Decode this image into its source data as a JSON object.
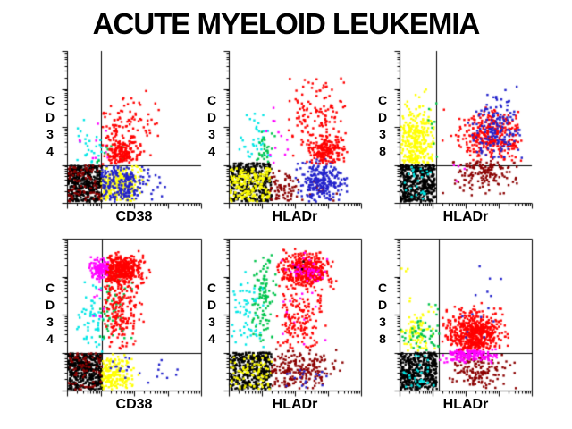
{
  "title": "ACUTE MYELOID LEUKEMIA",
  "colors": {
    "black": "#000000",
    "red": "#FF0000",
    "maroon": "#8B0000",
    "blue": "#2222CC",
    "yellow": "#FFFF00",
    "cyan": "#00E6E6",
    "green": "#00C44C",
    "magenta": "#FF00FF"
  },
  "chart_data": {
    "type": "scatter",
    "subtype": "flow-cytometry-dot-plots",
    "grid": "2 rows x 3 columns",
    "axis_scale": "log, 4 decades per axis, unlabeled tick marks",
    "panels": [
      {
        "id": "top-left",
        "xlabel": "CD38",
        "ylabel": "CD34",
        "boxed": false,
        "quadrant": {
          "x": 1.0,
          "y": 1.0
        },
        "clusters": [
          {
            "color": "black",
            "dist": "uniform",
            "n": 420,
            "box": [
              0.03,
              1.04,
              0.03,
              0.98
            ]
          },
          {
            "color": "maroon",
            "dist": "uniform",
            "n": 90,
            "box": [
              0.03,
              1.04,
              0.03,
              0.98
            ]
          },
          {
            "color": "yellow",
            "dist": "gauss",
            "n": 260,
            "cx": 1.45,
            "cy": 0.45,
            "sx": 0.42,
            "sy": 0.3,
            "box": [
              1.02,
              2.6,
              0.03,
              0.98
            ]
          },
          {
            "color": "blue",
            "dist": "gauss",
            "n": 220,
            "cx": 1.55,
            "cy": 0.5,
            "sx": 0.5,
            "sy": 0.32,
            "box": [
              1.02,
              3.1,
              0.03,
              0.98
            ]
          },
          {
            "color": "cyan",
            "dist": "gauss",
            "n": 28,
            "cx": 0.65,
            "cy": 1.45,
            "sx": 0.3,
            "sy": 0.4,
            "box": [
              0.1,
              1.15,
              1.0,
              2.9
            ]
          },
          {
            "color": "magenta",
            "dist": "gauss",
            "n": 10,
            "cx": 0.75,
            "cy": 1.5,
            "sx": 0.35,
            "sy": 0.45,
            "box": [
              0.1,
              1.3,
              1.0,
              2.6
            ]
          },
          {
            "color": "green",
            "dist": "gauss",
            "n": 10,
            "cx": 1.2,
            "cy": 1.25,
            "sx": 0.25,
            "sy": 0.3,
            "box": [
              0.9,
              1.7,
              1.0,
              2.2
            ]
          },
          {
            "color": "red",
            "dist": "gauss",
            "n": 110,
            "cx": 1.75,
            "cy": 2.0,
            "sx": 0.45,
            "sy": 0.55,
            "box": [
              1.05,
              2.8,
              1.0,
              3.2
            ]
          },
          {
            "color": "red",
            "dist": "gauss",
            "n": 170,
            "cx": 1.62,
            "cy": 1.32,
            "sx": 0.22,
            "sy": 0.18,
            "box": [
              1.05,
              2.6,
              1.02,
              2.0
            ]
          }
        ]
      },
      {
        "id": "top-middle",
        "xlabel": "HLADr",
        "ylabel": "CD34",
        "boxed": false,
        "quadrant": null,
        "clusters": [
          {
            "color": "black",
            "dist": "uniform",
            "n": 400,
            "box": [
              0.03,
              1.3,
              0.03,
              1.05
            ]
          },
          {
            "color": "yellow",
            "dist": "uniform",
            "n": 190,
            "box": [
              0.03,
              1.25,
              0.03,
              0.92
            ]
          },
          {
            "color": "maroon",
            "dist": "gauss",
            "n": 70,
            "cx": 1.6,
            "cy": 0.35,
            "sx": 0.25,
            "sy": 0.25,
            "box": [
              1.25,
              2.2,
              0.03,
              0.9
            ]
          },
          {
            "color": "maroon",
            "dist": "uniform",
            "n": 15,
            "box": [
              2.2,
              3.3,
              0.05,
              0.7
            ]
          },
          {
            "color": "blue",
            "dist": "gauss",
            "n": 240,
            "cx": 2.85,
            "cy": 0.55,
            "sx": 0.35,
            "sy": 0.3,
            "box": [
              2.0,
              3.6,
              0.03,
              1.15
            ]
          },
          {
            "color": "cyan",
            "dist": "gauss",
            "n": 35,
            "cx": 0.8,
            "cy": 1.6,
            "sx": 0.3,
            "sy": 0.4,
            "box": [
              0.3,
              1.3,
              1.05,
              2.5
            ]
          },
          {
            "color": "green",
            "dist": "gauss",
            "n": 30,
            "cx": 1.1,
            "cy": 1.35,
            "sx": 0.15,
            "sy": 0.25,
            "box": [
              0.8,
              1.4,
              1.0,
              2.0
            ]
          },
          {
            "color": "magenta",
            "dist": "gauss",
            "n": 12,
            "cx": 1.4,
            "cy": 1.7,
            "sx": 0.2,
            "sy": 0.45,
            "box": [
              1.1,
              1.8,
              1.05,
              2.7
            ]
          },
          {
            "color": "red",
            "dist": "gauss",
            "n": 130,
            "cx": 2.7,
            "cy": 2.3,
            "sx": 0.5,
            "sy": 0.6,
            "box": [
              1.6,
              3.6,
              1.2,
              3.3
            ]
          },
          {
            "color": "red",
            "dist": "gauss",
            "n": 190,
            "cx": 2.95,
            "cy": 1.35,
            "sx": 0.3,
            "sy": 0.22,
            "box": [
              2.2,
              3.6,
              1.0,
              1.9
            ]
          }
        ]
      },
      {
        "id": "top-right",
        "xlabel": "HLADr",
        "ylabel": "CD38",
        "boxed": false,
        "quadrant": {
          "x": 1.1,
          "y": 1.0
        },
        "clusters": [
          {
            "color": "black",
            "dist": "uniform",
            "n": 440,
            "box": [
              0.03,
              1.08,
              0.03,
              1.0
            ]
          },
          {
            "color": "cyan",
            "dist": "uniform",
            "n": 25,
            "box": [
              0.1,
              1.0,
              0.1,
              0.95
            ]
          },
          {
            "color": "yellow",
            "dist": "gauss",
            "n": 300,
            "cx": 0.5,
            "cy": 1.6,
            "sx": 0.3,
            "sy": 0.45,
            "box": [
              0.03,
              1.06,
              1.05,
              3.3
            ]
          },
          {
            "color": "green",
            "dist": "gauss",
            "n": 8,
            "cx": 1.0,
            "cy": 2.0,
            "sx": 0.1,
            "sy": 0.5,
            "box": [
              0.85,
              1.15,
              1.1,
              2.7
            ]
          },
          {
            "color": "maroon",
            "dist": "gauss",
            "n": 150,
            "cx": 2.6,
            "cy": 0.8,
            "sx": 0.5,
            "sy": 0.28,
            "box": [
              1.15,
              3.6,
              0.15,
              1.1
            ]
          },
          {
            "color": "magenta",
            "dist": "uniform",
            "n": 4,
            "box": [
              1.4,
              2.4,
              0.4,
              1.1
            ]
          },
          {
            "color": "red",
            "dist": "gauss",
            "n": 330,
            "cx": 2.75,
            "cy": 1.75,
            "sx": 0.5,
            "sy": 0.32,
            "box": [
              1.3,
              3.7,
              1.1,
              2.7
            ]
          },
          {
            "color": "blue",
            "dist": "gauss",
            "n": 160,
            "cx": 3.0,
            "cy": 1.9,
            "sx": 0.4,
            "sy": 0.45,
            "box": [
              1.5,
              3.7,
              1.1,
              3.4
            ]
          }
        ]
      },
      {
        "id": "bottom-left",
        "xlabel": "CD38",
        "ylabel": "CD34",
        "boxed": true,
        "quadrant": {
          "x": 1.05,
          "y": 1.0
        },
        "clusters": [
          {
            "color": "black",
            "dist": "uniform",
            "n": 430,
            "box": [
              0.03,
              1.03,
              0.03,
              0.98
            ]
          },
          {
            "color": "maroon",
            "dist": "uniform",
            "n": 70,
            "box": [
              0.03,
              1.03,
              0.03,
              0.98
            ]
          },
          {
            "color": "yellow",
            "dist": "gauss",
            "n": 170,
            "cx": 1.35,
            "cy": 0.4,
            "sx": 0.3,
            "sy": 0.28,
            "box": [
              1.05,
              2.3,
              0.03,
              0.98
            ]
          },
          {
            "color": "blue",
            "dist": "uniform",
            "n": 22,
            "box": [
              1.2,
              3.6,
              0.15,
              0.95
            ]
          },
          {
            "color": "cyan",
            "dist": "gauss",
            "n": 55,
            "cx": 0.75,
            "cy": 1.8,
            "sx": 0.22,
            "sy": 0.45,
            "box": [
              0.2,
              1.1,
              1.0,
              2.9
            ]
          },
          {
            "color": "green",
            "dist": "gauss",
            "n": 60,
            "cx": 1.3,
            "cy": 2.4,
            "sx": 0.3,
            "sy": 0.7,
            "box": [
              0.95,
              2.0,
              1.2,
              3.7
            ]
          },
          {
            "color": "magenta",
            "dist": "uniform",
            "n": 8,
            "box": [
              0.75,
              1.15,
              1.9,
              2.8
            ]
          },
          {
            "color": "red",
            "dist": "gauss",
            "n": 170,
            "cx": 1.6,
            "cy": 2.1,
            "sx": 0.3,
            "sy": 0.5,
            "box": [
              1.1,
              2.4,
              1.1,
              2.7
            ]
          },
          {
            "color": "red",
            "dist": "gauss",
            "n": 430,
            "cx": 1.65,
            "cy": 3.15,
            "sx": 0.3,
            "sy": 0.2,
            "box": [
              1.1,
              2.7,
              2.6,
              3.75
            ]
          },
          {
            "color": "magenta",
            "dist": "gauss",
            "n": 140,
            "cx": 0.95,
            "cy": 3.2,
            "sx": 0.13,
            "sy": 0.13,
            "box": [
              0.6,
              1.25,
              2.85,
              3.6
            ]
          }
        ]
      },
      {
        "id": "bottom-middle",
        "xlabel": "HLADr",
        "ylabel": "CD34",
        "boxed": true,
        "quadrant": null,
        "clusters": [
          {
            "color": "black",
            "dist": "uniform",
            "n": 420,
            "box": [
              0.03,
              1.3,
              0.03,
              1.0
            ]
          },
          {
            "color": "yellow",
            "dist": "uniform",
            "n": 80,
            "box": [
              0.05,
              1.3,
              0.03,
              0.95
            ]
          },
          {
            "color": "maroon",
            "dist": "gauss",
            "n": 210,
            "cx": 2.0,
            "cy": 0.55,
            "sx": 0.55,
            "sy": 0.3,
            "box": [
              1.3,
              3.5,
              0.03,
              1.1
            ]
          },
          {
            "color": "blue",
            "dist": "uniform",
            "n": 18,
            "box": [
              1.6,
              3.1,
              0.05,
              0.6
            ]
          },
          {
            "color": "cyan",
            "dist": "gauss",
            "n": 65,
            "cx": 0.5,
            "cy": 2.1,
            "sx": 0.3,
            "sy": 0.55,
            "box": [
              0.05,
              1.1,
              1.1,
              3.3
            ]
          },
          {
            "color": "green",
            "dist": "gauss",
            "n": 105,
            "cx": 1.05,
            "cy": 2.4,
            "sx": 0.18,
            "sy": 0.65,
            "box": [
              0.7,
              1.45,
              1.1,
              3.6
            ]
          },
          {
            "color": "magenta",
            "dist": "uniform",
            "n": 14,
            "box": [
              1.4,
              3.0,
              1.2,
              2.6
            ]
          },
          {
            "color": "red",
            "dist": "gauss",
            "n": 150,
            "cx": 2.1,
            "cy": 1.9,
            "sx": 0.4,
            "sy": 0.5,
            "box": [
              1.3,
              3.1,
              1.1,
              2.55
            ]
          },
          {
            "color": "red",
            "dist": "gauss",
            "n": 430,
            "cx": 2.3,
            "cy": 3.15,
            "sx": 0.35,
            "sy": 0.24,
            "box": [
              1.45,
              3.3,
              2.55,
              3.75
            ]
          },
          {
            "color": "magenta",
            "dist": "gauss",
            "n": 45,
            "cx": 2.3,
            "cy": 3.2,
            "sx": 0.35,
            "sy": 0.2,
            "box": [
              1.5,
              3.3,
              2.7,
              3.7
            ]
          },
          {
            "color": "black",
            "dist": "uniform",
            "n": 3,
            "box": [
              2.0,
              2.6,
              3.0,
              3.4
            ]
          }
        ]
      },
      {
        "id": "bottom-right",
        "xlabel": "HLADr",
        "ylabel": "CD38",
        "boxed": true,
        "quadrant": {
          "x": 1.2,
          "y": 1.0
        },
        "clusters": [
          {
            "color": "black",
            "dist": "uniform",
            "n": 450,
            "box": [
              0.03,
              1.13,
              0.03,
              1.0
            ]
          },
          {
            "color": "cyan",
            "dist": "uniform",
            "n": 30,
            "box": [
              0.1,
              1.05,
              0.1,
              0.98
            ]
          },
          {
            "color": "yellow",
            "dist": "gauss",
            "n": 75,
            "cx": 0.5,
            "cy": 1.5,
            "sx": 0.3,
            "sy": 0.35,
            "box": [
              0.03,
              1.12,
              1.05,
              2.5
            ]
          },
          {
            "color": "yellow",
            "dist": "uniform",
            "n": 3,
            "box": [
              0.05,
              0.3,
              2.9,
              3.5
            ]
          },
          {
            "color": "green",
            "dist": "gauss",
            "n": 55,
            "cx": 0.7,
            "cy": 1.5,
            "sx": 0.35,
            "sy": 0.35,
            "box": [
              0.03,
              1.2,
              1.05,
              2.4
            ]
          },
          {
            "color": "maroon",
            "dist": "gauss",
            "n": 150,
            "cx": 2.4,
            "cy": 0.5,
            "sx": 0.55,
            "sy": 0.3,
            "box": [
              1.2,
              3.6,
              0.05,
              0.95
            ]
          },
          {
            "color": "magenta",
            "dist": "gauss",
            "n": 160,
            "cx": 2.1,
            "cy": 0.95,
            "sx": 0.4,
            "sy": 0.1,
            "box": [
              1.2,
              3.0,
              0.72,
              1.1
            ]
          },
          {
            "color": "red",
            "dist": "gauss",
            "n": 560,
            "cx": 2.25,
            "cy": 1.5,
            "sx": 0.42,
            "sy": 0.28,
            "box": [
              1.2,
              3.4,
              1.07,
              2.6
            ]
          },
          {
            "color": "blue",
            "dist": "uniform",
            "n": 6,
            "box": [
              2.2,
              3.1,
              2.4,
              3.6
            ]
          },
          {
            "color": "blue",
            "dist": "uniform",
            "n": 8,
            "box": [
              1.8,
              2.9,
              1.2,
              2.2
            ]
          }
        ]
      }
    ]
  }
}
